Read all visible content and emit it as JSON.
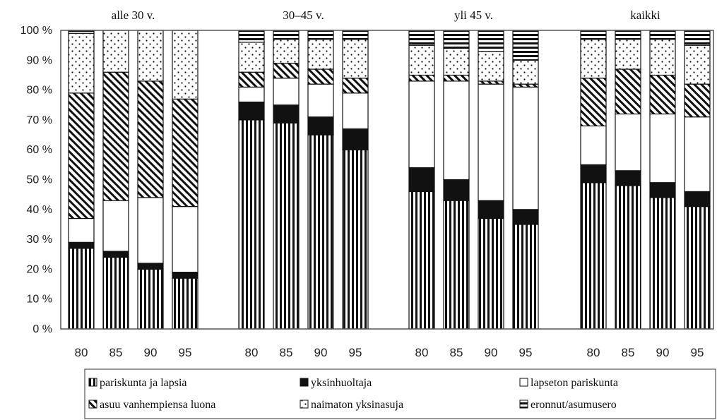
{
  "chart_data": {
    "type": "bar",
    "stacked": true,
    "normalized": true,
    "yticks": [
      "0 %",
      "10 %",
      "20 %",
      "30 %",
      "40 %",
      "50 %",
      "60 %",
      "70 %",
      "80 %",
      "90 %",
      "100 %"
    ],
    "ylim": [
      0,
      100
    ],
    "groups": [
      {
        "title": "alle 30 v.",
        "bars": [
          {
            "x": "80",
            "values": [
              27,
              2,
              8,
              42,
              20,
              1
            ]
          },
          {
            "x": "85",
            "values": [
              24,
              2,
              17,
              43,
              14,
              0
            ]
          },
          {
            "x": "90",
            "values": [
              20,
              2,
              22,
              39,
              17,
              0
            ]
          },
          {
            "x": "95",
            "values": [
              17,
              2,
              22,
              36,
              23,
              0
            ]
          }
        ]
      },
      {
        "title": "30–45 v.",
        "bars": [
          {
            "x": "80",
            "values": [
              70,
              6,
              5,
              5,
              10,
              4
            ]
          },
          {
            "x": "85",
            "values": [
              69,
              6,
              9,
              5,
              8,
              3
            ]
          },
          {
            "x": "90",
            "values": [
              65,
              6,
              11,
              5,
              10,
              3
            ]
          },
          {
            "x": "95",
            "values": [
              60,
              7,
              12,
              5,
              13,
              3
            ]
          }
        ]
      },
      {
        "title": "yli 45 v.",
        "bars": [
          {
            "x": "80",
            "values": [
              46,
              8,
              29,
              2,
              10,
              5
            ]
          },
          {
            "x": "85",
            "values": [
              43,
              7,
              33,
              2,
              9,
              6
            ]
          },
          {
            "x": "90",
            "values": [
              37,
              6,
              39,
              1,
              10,
              7
            ]
          },
          {
            "x": "95",
            "values": [
              35,
              5,
              41,
              1,
              8,
              10
            ]
          }
        ]
      },
      {
        "title": "kaikki",
        "bars": [
          {
            "x": "80",
            "values": [
              49,
              6,
              13,
              16,
              13,
              3
            ]
          },
          {
            "x": "85",
            "values": [
              48,
              5,
              19,
              15,
              10,
              3
            ]
          },
          {
            "x": "90",
            "values": [
              44,
              5,
              23,
              13,
              12,
              3
            ]
          },
          {
            "x": "95",
            "values": [
              41,
              5,
              25,
              11,
              13,
              5
            ]
          }
        ]
      }
    ],
    "series": [
      {
        "name": "pariskunta ja lapsia",
        "pattern": "vertical-stripes"
      },
      {
        "name": "yksinhuoltaja",
        "pattern": "solid-black"
      },
      {
        "name": "lapseton pariskunta",
        "pattern": "white"
      },
      {
        "name": "asuu vanhempiensa luona",
        "pattern": "diagonal-hatch"
      },
      {
        "name": "naimaton yksinasuja",
        "pattern": "dots"
      },
      {
        "name": "eronnut/asumusero",
        "pattern": "horizontal-stripes"
      }
    ],
    "legend_order": [
      0,
      1,
      2,
      3,
      4,
      5
    ],
    "legend_position": "bottom",
    "grid": false
  }
}
